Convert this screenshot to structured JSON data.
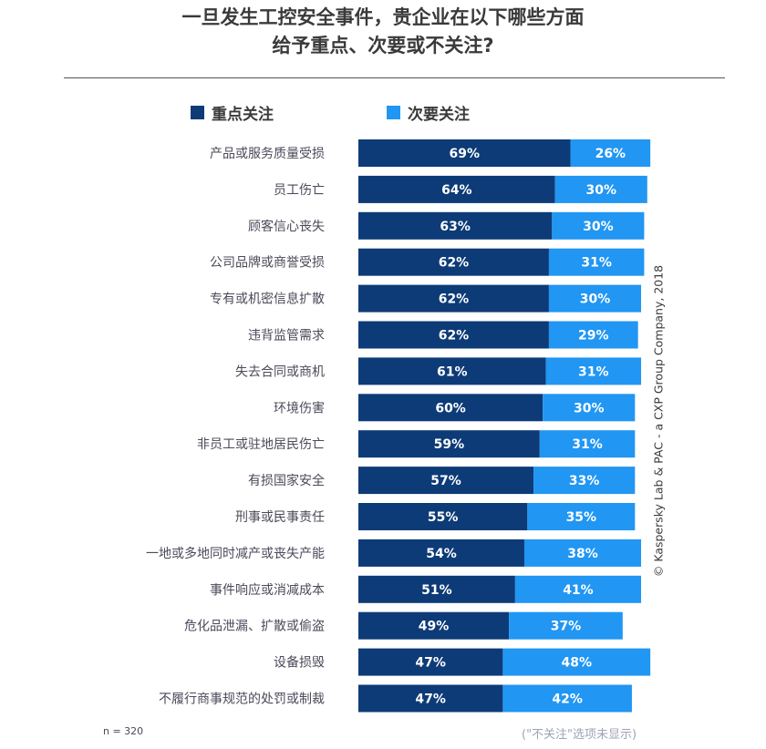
{
  "title_line1": "一旦发生工控安全事件，贵企业在以下哪些方面",
  "title_line2": "给予重点、次要或不关注?",
  "colors": {
    "primary": "#0d3b77",
    "secondary": "#2196f3"
  },
  "credit": "© Kaspersky Lab & PAC - a CXP Group Company, 2018",
  "footnote_n": "n = 320",
  "footnote_right": "(\"不关注\"选项未显示)",
  "chart_data": {
    "type": "bar",
    "orientation": "horizontal",
    "stacked": true,
    "categories": [
      "产品或服务质量受损",
      "员工伤亡",
      "顾客信心丧失",
      "公司品牌或商誉受损",
      "专有或机密信息扩散",
      "违背监管需求",
      "失去合同或商机",
      "环境伤害",
      "非员工或驻地居民伤亡",
      "有损国家安全",
      "刑事或民事责任",
      "一地或多地同时减产或丧失产能",
      "事件响应或消减成本",
      "危化品泄漏、扩散或偷盗",
      "设备损毁",
      "不履行商事规范的处罚或制裁"
    ],
    "series": [
      {
        "name": "重点关注",
        "values": [
          69,
          64,
          63,
          62,
          62,
          62,
          61,
          60,
          59,
          57,
          55,
          54,
          51,
          49,
          47,
          47
        ]
      },
      {
        "name": "次要关注",
        "values": [
          26,
          30,
          30,
          31,
          30,
          29,
          31,
          30,
          31,
          33,
          35,
          38,
          41,
          37,
          48,
          42
        ]
      }
    ],
    "value_suffix": "%",
    "legend": "top"
  }
}
